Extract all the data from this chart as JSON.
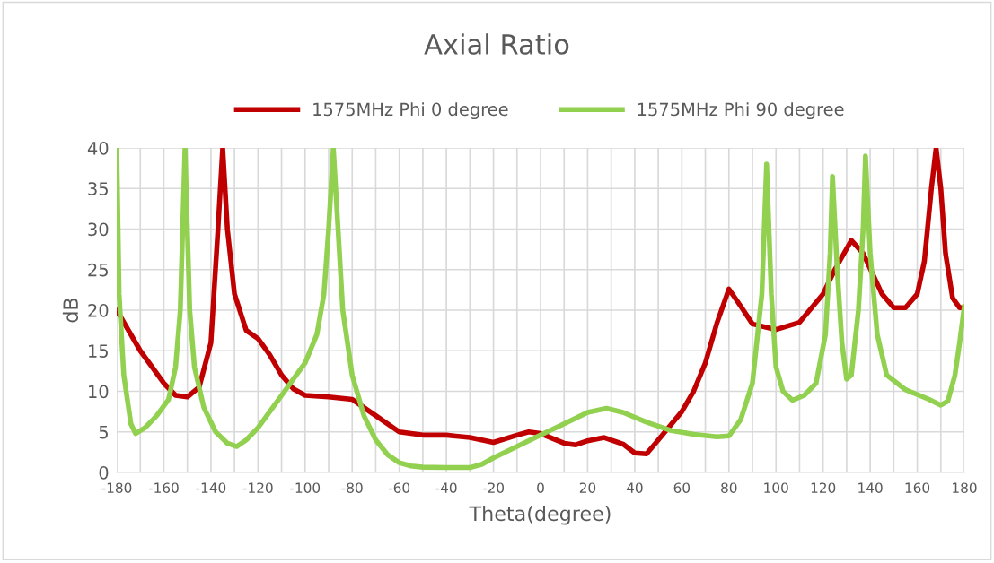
{
  "chart_data": {
    "type": "line",
    "title": "Axial Ratio",
    "xlabel": "Theta(degree)",
    "ylabel": "dB",
    "xlim": [
      -180,
      180
    ],
    "ylim": [
      0,
      40
    ],
    "xticks": [
      -180,
      {
        "value": -170,
        "label": null
      },
      -160,
      {
        "value": -150,
        "label": null
      },
      -140,
      {
        "value": -130,
        "label": null
      },
      -120,
      {
        "value": -110,
        "label": null
      },
      -100,
      {
        "value": -90,
        "label": null
      },
      -80,
      {
        "value": -70,
        "label": null
      },
      -60,
      {
        "value": -50,
        "label": null
      },
      -40,
      {
        "value": -30,
        "label": null
      },
      -20,
      {
        "value": -10,
        "label": null
      },
      0,
      {
        "value": 10,
        "label": null
      },
      20,
      {
        "value": 30,
        "label": null
      },
      40,
      {
        "value": 50,
        "label": null
      },
      60,
      {
        "value": 70,
        "label": null
      },
      80,
      {
        "value": 90,
        "label": null
      },
      100,
      {
        "value": 110,
        "label": null
      },
      120,
      {
        "value": 130,
        "label": null
      },
      140,
      {
        "value": 150,
        "label": null
      },
      160,
      {
        "value": 170,
        "label": null
      },
      180
    ],
    "yticks": [
      0,
      5,
      10,
      15,
      20,
      25,
      30,
      35,
      40
    ],
    "grid": true,
    "legend": "top",
    "marker": "none",
    "line_style": "solid",
    "series": [
      {
        "name": "1575MHz Phi 0 degree",
        "color": "#c00000",
        "x": [
          -180,
          -170,
          -160,
          -155,
          -150,
          -145,
          -140,
          -137,
          -135,
          -133,
          -130,
          -125,
          -120,
          -115,
          -110,
          -105,
          -100,
          -90,
          -80,
          -75,
          -70,
          -60,
          -50,
          -40,
          -30,
          -20,
          -10,
          -5,
          0,
          10,
          15,
          20,
          27,
          35,
          40,
          45,
          50,
          60,
          65,
          70,
          75,
          80,
          85,
          90,
          100,
          110,
          120,
          125,
          132,
          137,
          145,
          150,
          155,
          160,
          163,
          166,
          168,
          170,
          172,
          175,
          178,
          180
        ],
        "values": [
          20,
          15,
          11,
          9.5,
          9.3,
          10.5,
          16,
          30,
          40,
          30,
          22,
          17.5,
          16.5,
          14.5,
          12,
          10.3,
          9.5,
          9.3,
          9,
          8,
          7,
          5,
          4.6,
          4.6,
          4.3,
          3.7,
          4.6,
          5,
          4.8,
          3.6,
          3.4,
          3.9,
          4.3,
          3.5,
          2.4,
          2.3,
          4,
          7.5,
          10,
          13.5,
          18.5,
          22.6,
          20.5,
          18.3,
          17.6,
          18.5,
          22,
          25,
          28.6,
          27,
          22,
          20.3,
          20.3,
          22,
          26,
          35,
          40,
          35,
          27,
          21.5,
          20.3,
          20.3
        ]
      },
      {
        "name": "1575MHz Phi 90 degree",
        "color": "#92d050",
        "x": [
          -180,
          -179,
          -177,
          -174,
          -172,
          -168,
          -163,
          -158,
          -155,
          -153,
          -151,
          -149,
          -147,
          -143,
          -138,
          -133,
          -129,
          -125,
          -120,
          -115,
          -110,
          -105,
          -100,
          -95,
          -92,
          -90,
          -88,
          -86,
          -84,
          -80,
          -75,
          -70,
          -65,
          -60,
          -55,
          -50,
          -40,
          -30,
          -25,
          -20,
          -10,
          0,
          10,
          20,
          28,
          35,
          45,
          55,
          65,
          75,
          80,
          85,
          90,
          94,
          96,
          98,
          100,
          103,
          107,
          112,
          117,
          121,
          123,
          124,
          126,
          128,
          130,
          132,
          135,
          137,
          138,
          140,
          143,
          147,
          155,
          165,
          170,
          173,
          176,
          178,
          180
        ],
        "values": [
          40,
          22,
          12,
          6,
          4.8,
          5.5,
          7,
          9,
          13,
          20,
          40,
          20,
          13,
          8,
          5,
          3.6,
          3.2,
          4,
          5.5,
          7.5,
          9.5,
          11.5,
          13.5,
          17,
          22,
          30,
          40,
          30,
          20,
          12,
          7,
          4,
          2.2,
          1.2,
          0.8,
          0.65,
          0.6,
          0.6,
          1,
          1.8,
          3.2,
          4.6,
          6,
          7.4,
          7.9,
          7.4,
          6.2,
          5.2,
          4.7,
          4.4,
          4.5,
          6.5,
          11,
          22,
          38,
          22,
          13,
          10,
          8.9,
          9.5,
          11,
          17,
          27,
          36.5,
          25,
          16,
          11.5,
          12,
          20,
          30,
          39,
          27,
          17,
          12,
          10.2,
          9,
          8.3,
          8.8,
          12,
          16,
          20.5
        ]
      }
    ]
  }
}
